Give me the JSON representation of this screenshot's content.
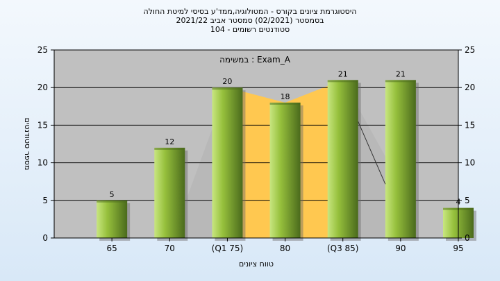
{
  "title_lines": [
    "היסטוגרמת ציונים בקורס - המטולוגיה,ממד'ע בסיסי למיטת החולה",
    "בסמסטר  (02/2021)  סמסטר אביב 2021/22",
    "סטודנטים רשומים - 104"
  ],
  "chart_data": {
    "type": "bar",
    "categories": [
      "65",
      "70",
      "(Q1 75)",
      "80",
      "(Q3 85)",
      "90",
      "95"
    ],
    "values": [
      5,
      12,
      20,
      18,
      21,
      21,
      4
    ],
    "xlabel": "טווח ציונים",
    "ylabel": "מספר סטודנטים",
    "ylim": [
      0,
      25
    ],
    "yticks": [
      0,
      5,
      10,
      15,
      20,
      25
    ],
    "annotation": "במשימה : Exam_A",
    "highlight_band": {
      "from_category": 2,
      "to_category": 4
    },
    "grid": true,
    "colors": {
      "plot_background": "#c0c0c0",
      "bar_light": "#c8e680",
      "bar_mid": "#96c03c",
      "bar_dark": "#4a6a1c",
      "iqr_band": "#ffc850",
      "tail_area": "#b8b8b8"
    }
  }
}
